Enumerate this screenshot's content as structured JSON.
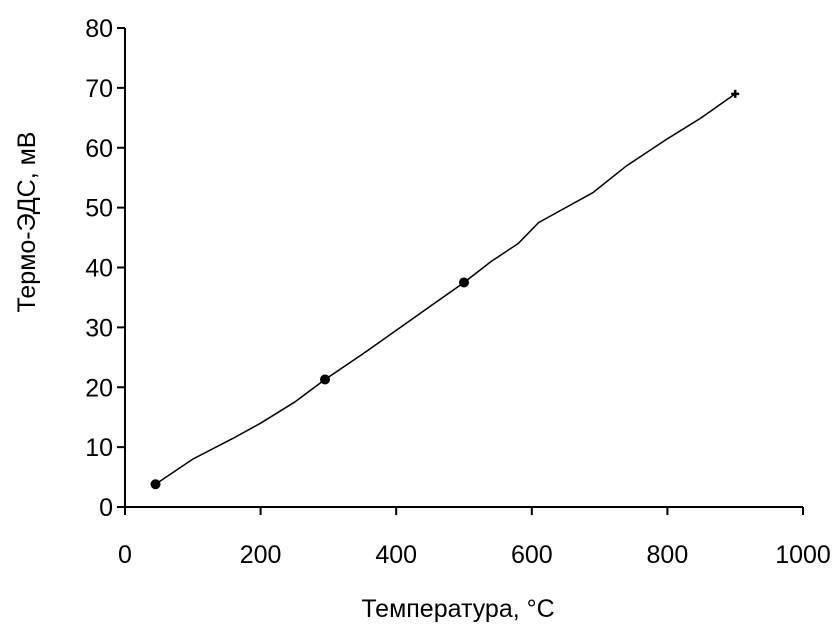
{
  "chart_data": {
    "type": "line",
    "xlabel": "Температура, °С",
    "ylabel": "Термо-ЭДС, мВ",
    "xlim": [
      0,
      1000
    ],
    "ylim": [
      0,
      80
    ],
    "x_ticks": [
      0,
      200,
      400,
      600,
      800,
      1000
    ],
    "y_ticks": [
      0,
      10,
      20,
      30,
      40,
      50,
      60,
      70,
      80
    ],
    "x_tick_labels": [
      "0",
      "200",
      "400",
      "600",
      "800",
      "1000"
    ],
    "y_tick_labels": [
      "0",
      "10",
      "20",
      "30",
      "40",
      "50",
      "60",
      "70",
      "80"
    ],
    "grid": false,
    "series": [
      {
        "points": [
          {
            "x": 45,
            "y": 3.8
          },
          {
            "x": 295,
            "y": 21.3
          },
          {
            "x": 500,
            "y": 37.5
          },
          {
            "x": 900,
            "y": 69
          }
        ],
        "curve": [
          [
            45,
            3.8
          ],
          [
            100,
            8.0
          ],
          [
            160,
            11.5
          ],
          [
            200,
            14.0
          ],
          [
            250,
            17.5
          ],
          [
            295,
            21.3
          ],
          [
            350,
            25.5
          ],
          [
            400,
            29.5
          ],
          [
            450,
            33.5
          ],
          [
            500,
            37.5
          ],
          [
            540,
            41.0
          ],
          [
            580,
            44.0
          ],
          [
            610,
            47.5
          ],
          [
            650,
            50.0
          ],
          [
            690,
            52.5
          ],
          [
            740,
            57.0
          ],
          [
            800,
            61.5
          ],
          [
            850,
            65.0
          ],
          [
            900,
            69.0
          ]
        ],
        "color": "#000000"
      }
    ]
  }
}
